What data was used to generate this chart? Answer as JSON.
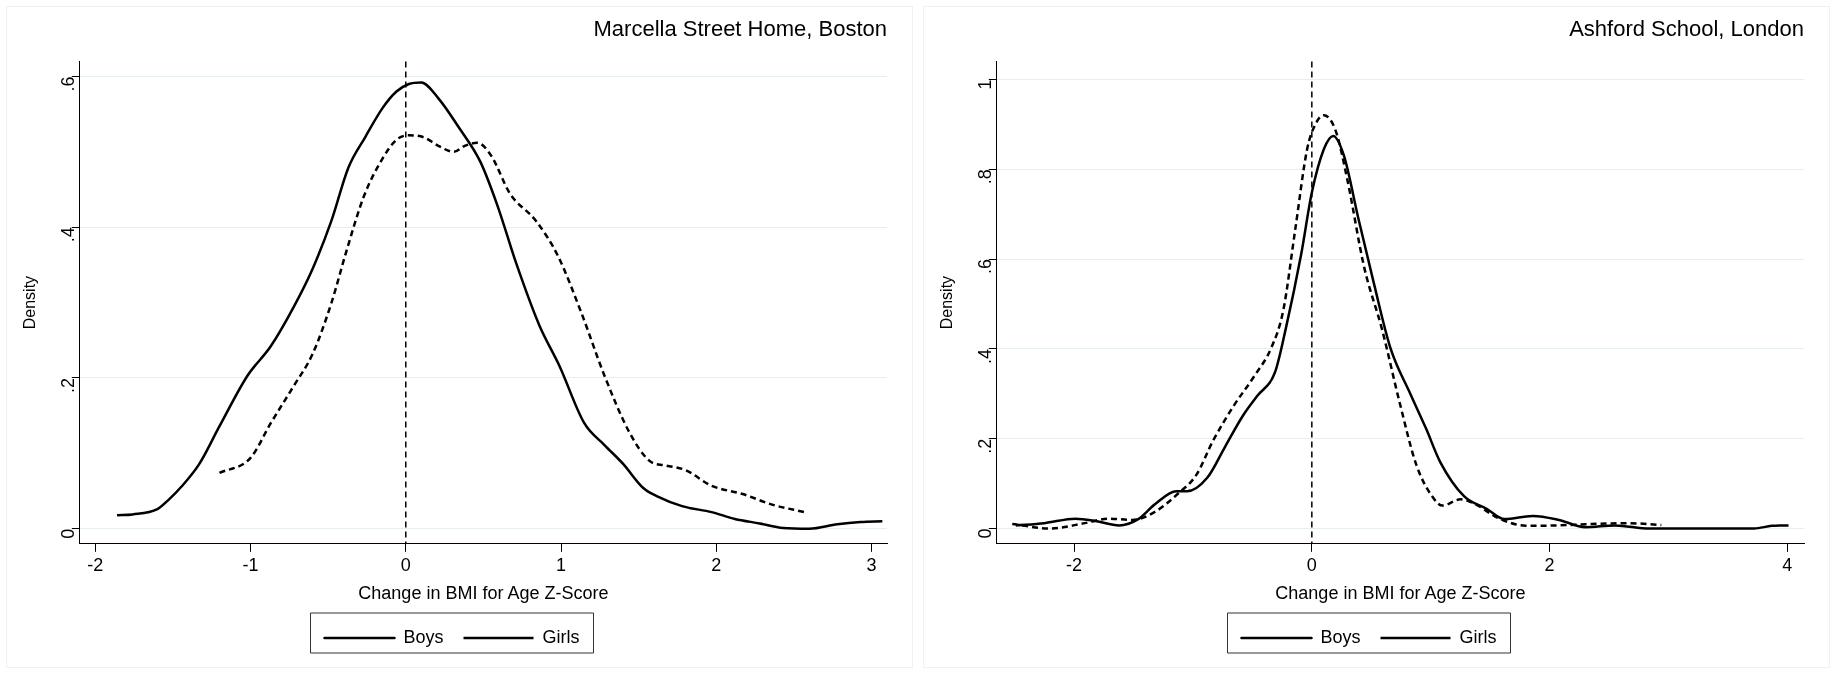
{
  "chart_data": [
    {
      "type": "line",
      "title": "Marcella Street Home, Boston",
      "xlabel": "Change in BMI for Age Z-Score",
      "ylabel": "Density",
      "xlim": [
        -2.1,
        3.1
      ],
      "ylim": [
        -0.02,
        0.62
      ],
      "xticks": [
        -2,
        -1,
        0,
        1,
        2,
        3
      ],
      "yticks": [
        {
          "value": 0,
          "label": "0"
        },
        {
          "value": 0.2,
          "label": ".2"
        },
        {
          "value": 0.4,
          "label": ".4"
        },
        {
          "value": 0.6,
          "label": ".6"
        }
      ],
      "grid": "y",
      "legend": "bottom",
      "marker": "none",
      "ref_lines": [
        {
          "axis": "x",
          "value": 0,
          "line_style": "dashed",
          "color": "#000000"
        }
      ],
      "series": [
        {
          "name": "Boys",
          "color": "#000000",
          "line_style": "solid",
          "x": [
            -1.86,
            -1.76,
            -1.6,
            -1.53,
            -1.44,
            -1.33,
            -1.2,
            -1.02,
            -0.87,
            -0.72,
            -0.6,
            -0.48,
            -0.37,
            -0.26,
            -0.15,
            -0.06,
            0.02,
            0.1,
            0.21,
            0.34,
            0.48,
            0.59,
            0.71,
            0.86,
            0.99,
            1.15,
            1.28,
            1.4,
            1.53,
            1.62,
            1.78,
            1.97,
            2.12,
            2.28,
            2.43,
            2.6,
            2.78,
            2.93,
            3.07
          ],
          "values": [
            0.018,
            0.019,
            0.026,
            0.038,
            0.057,
            0.086,
            0.136,
            0.203,
            0.242,
            0.295,
            0.345,
            0.408,
            0.479,
            0.52,
            0.558,
            0.58,
            0.59,
            0.592,
            0.571,
            0.533,
            0.487,
            0.429,
            0.353,
            0.27,
            0.216,
            0.14,
            0.111,
            0.086,
            0.054,
            0.043,
            0.03,
            0.022,
            0.013,
            0.007,
            0.001,
            0,
            0.006,
            0.009,
            0.01
          ]
        },
        {
          "name": "Girls",
          "color": "#000000",
          "line_style": "dashed",
          "x": [
            -1.2,
            -1.0,
            -0.87,
            -0.72,
            -0.6,
            -0.48,
            -0.38,
            -0.27,
            -0.15,
            -0.06,
            0.02,
            0.12,
            0.21,
            0.31,
            0.38,
            0.46,
            0.55,
            0.67,
            0.84,
            0.98,
            1.13,
            1.28,
            1.44,
            1.57,
            1.67,
            1.8,
            1.97,
            2.17,
            2.36,
            2.57
          ],
          "values": [
            0.074,
            0.094,
            0.14,
            0.19,
            0.232,
            0.299,
            0.37,
            0.441,
            0.491,
            0.516,
            0.522,
            0.519,
            0.508,
            0.5,
            0.508,
            0.512,
            0.495,
            0.445,
            0.408,
            0.362,
            0.287,
            0.203,
            0.128,
            0.09,
            0.084,
            0.078,
            0.057,
            0.046,
            0.032,
            0.022
          ]
        }
      ]
    },
    {
      "type": "line",
      "title": "Ashford School, London",
      "xlabel": "Change in BMI for Age Z-Score",
      "ylabel": "Density",
      "xlim": [
        -2.65,
        4.14
      ],
      "ylim": [
        -0.034,
        1.04
      ],
      "xticks": [
        -2,
        0,
        2,
        4
      ],
      "yticks": [
        {
          "value": 0,
          "label": "0"
        },
        {
          "value": 0.2,
          "label": ".2"
        },
        {
          "value": 0.4,
          "label": ".4"
        },
        {
          "value": 0.6,
          "label": ".6"
        },
        {
          "value": 0.8,
          "label": ".8"
        },
        {
          "value": 1,
          "label": "1"
        }
      ],
      "grid": "y",
      "legend": "bottom",
      "marker": "none",
      "ref_lines": [
        {
          "axis": "x",
          "value": 0,
          "line_style": "dashed",
          "color": "#000000"
        }
      ],
      "series": [
        {
          "name": "Boys",
          "color": "#000000",
          "line_style": "solid",
          "x": [
            -2.49,
            -2.25,
            -1.99,
            -1.82,
            -1.62,
            -1.46,
            -1.32,
            -1.14,
            -1.05,
            -0.88,
            -0.73,
            -0.58,
            -0.46,
            -0.31,
            -0.22,
            -0.09,
            0.0,
            0.1,
            0.18,
            0.27,
            0.39,
            0.52,
            0.66,
            0.83,
            0.96,
            1.08,
            1.28,
            1.47,
            1.62,
            1.86,
            2.08,
            2.3,
            2.55,
            2.84,
            3.33,
            3.72,
            3.87,
            4.01
          ],
          "values": [
            0.007,
            0.012,
            0.022,
            0.017,
            0.007,
            0.021,
            0.054,
            0.083,
            0.083,
            0.113,
            0.182,
            0.251,
            0.295,
            0.348,
            0.444,
            0.61,
            0.748,
            0.844,
            0.874,
            0.83,
            0.692,
            0.548,
            0.403,
            0.299,
            0.223,
            0.148,
            0.072,
            0.044,
            0.021,
            0.028,
            0.019,
            0.003,
            0.007,
            0,
            0,
            0,
            0.006,
            0.007
          ]
        },
        {
          "name": "Girls",
          "color": "#000000",
          "line_style": "dashed",
          "x": [
            -2.52,
            -2.2,
            -1.91,
            -1.71,
            -1.51,
            -1.32,
            -1.12,
            -0.97,
            -0.83,
            -0.66,
            -0.48,
            -0.34,
            -0.24,
            -0.14,
            -0.04,
            0.03,
            0.1,
            0.2,
            0.3,
            0.44,
            0.59,
            0.74,
            0.88,
            1.03,
            1.1,
            1.25,
            1.37,
            1.57,
            1.81,
            2.06,
            2.35,
            2.65,
            2.94
          ],
          "values": [
            0.01,
            0,
            0.012,
            0.022,
            0.019,
            0.037,
            0.079,
            0.12,
            0.196,
            0.272,
            0.341,
            0.403,
            0.486,
            0.665,
            0.844,
            0.9,
            0.92,
            0.886,
            0.775,
            0.582,
            0.444,
            0.279,
            0.141,
            0.065,
            0.051,
            0.065,
            0.055,
            0.023,
            0.006,
            0.007,
            0.01,
            0.012,
            0.008
          ]
        }
      ]
    }
  ]
}
